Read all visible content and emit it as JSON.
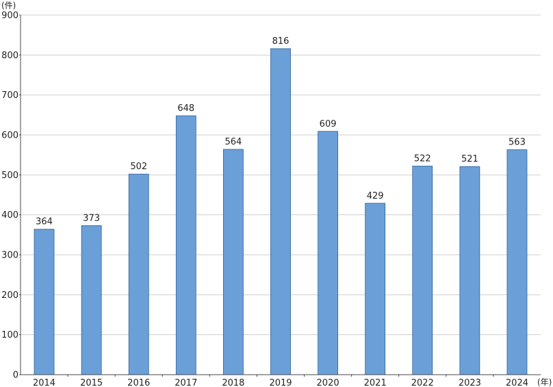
{
  "chart_data": {
    "type": "bar",
    "title": "",
    "xlabel": "",
    "ylabel": "",
    "y_unit": "(件)",
    "x_unit": "(年)",
    "categories": [
      "2014",
      "2015",
      "2016",
      "2017",
      "2018",
      "2019",
      "2020",
      "2021",
      "2022",
      "2023",
      "2024"
    ],
    "values": [
      364,
      373,
      502,
      648,
      564,
      816,
      609,
      429,
      522,
      521,
      563
    ],
    "ylim": [
      0,
      900
    ],
    "yticks": [
      0,
      100,
      200,
      300,
      400,
      500,
      600,
      700,
      800,
      900
    ],
    "grid": true,
    "data_labels": true,
    "legend": "none",
    "colors": {
      "bar": "#6b9fd8",
      "bar_edge": "#2f5f95",
      "grid": "#cfcfcf"
    }
  }
}
